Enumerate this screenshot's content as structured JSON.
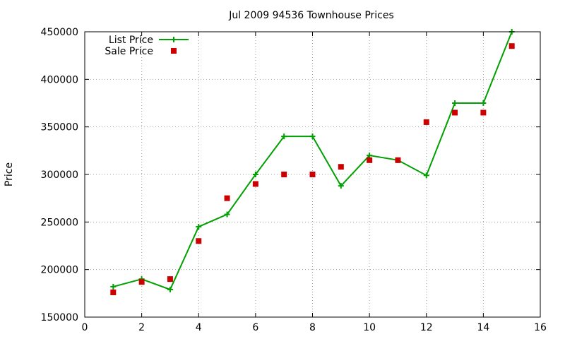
{
  "chart_data": {
    "type": "line",
    "title": "Jul 2009 94536 Townhouse Prices",
    "xlabel": "",
    "ylabel": "Price",
    "xlim": [
      0,
      16
    ],
    "ylim": [
      150000,
      450000
    ],
    "xticks": [
      0,
      2,
      4,
      6,
      8,
      10,
      12,
      14,
      16
    ],
    "yticks": [
      150000,
      200000,
      250000,
      300000,
      350000,
      400000,
      450000
    ],
    "grid": true,
    "legend_position": "top-left",
    "series": [
      {
        "name": "List Price",
        "style": "line+cross",
        "color": "#00a000",
        "x": [
          1,
          2,
          3,
          4,
          5,
          6,
          7,
          8,
          9,
          10,
          11,
          12,
          13,
          14,
          15
        ],
        "y": [
          182000,
          190000,
          179000,
          245000,
          258000,
          300000,
          340000,
          340000,
          288000,
          320000,
          315000,
          299000,
          375000,
          375000,
          450000
        ]
      },
      {
        "name": "Sale Price",
        "style": "square",
        "color": "#cc0000",
        "x": [
          1,
          2,
          3,
          4,
          5,
          6,
          7,
          8,
          9,
          10,
          11,
          12,
          13,
          14,
          15
        ],
        "y": [
          176000,
          187000,
          190000,
          230000,
          275000,
          290000,
          300000,
          300000,
          308000,
          315000,
          315000,
          355000,
          365000,
          365000,
          435000
        ]
      }
    ]
  }
}
